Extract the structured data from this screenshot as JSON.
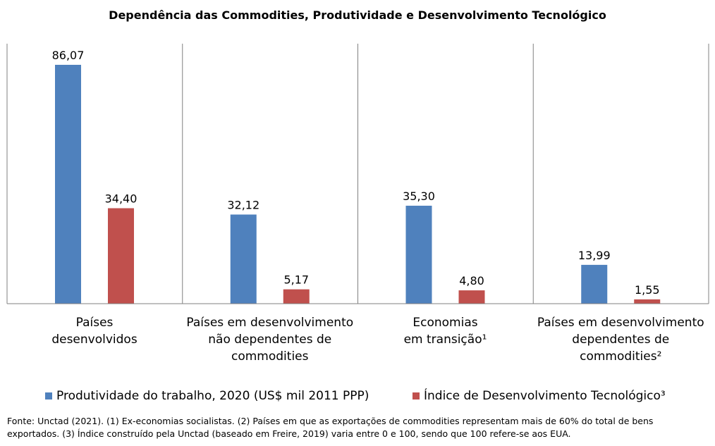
{
  "chart_data": {
    "type": "bar",
    "title": "Dependência das Commodities, Produtividade e Desenvolvimento Tecnológico",
    "categories": [
      [
        "Países",
        "desenvolvidos"
      ],
      [
        "Países em desenvolvimento",
        "não dependentes de",
        "commodities"
      ],
      [
        "Economias",
        "em transição¹"
      ],
      [
        "Países em desenvolvimento",
        "dependentes de",
        "commodities²"
      ]
    ],
    "series": [
      {
        "name": "Produtividade do trabalho, 2020 (US$ mil 2011 PPP)",
        "values": [
          86.07,
          32.12,
          35.3,
          13.99
        ],
        "labels": [
          "86,07",
          "32,12",
          "35,30",
          "13,99"
        ],
        "color": "#4F81BD"
      },
      {
        "name": "Índice de Desenvolvimento Tecnológico³",
        "values": [
          34.4,
          5.17,
          4.8,
          1.55
        ],
        "labels": [
          "34,40",
          "5,17",
          "4,80",
          "1,55"
        ],
        "color": "#C0504D"
      }
    ],
    "ylim": [
      0,
      86.07
    ],
    "grid": false,
    "category_dividers": true,
    "legend_position": "bottom"
  },
  "source_note": [
    "Fonte: Unctad (2021). (1) Ex-economias socialistas. (2) Países em que as exportações de commodities representam mais de 60% do total de bens",
    "exportados. (3) Índice construído pela Unctad (baseado em Freire, 2019) varia entre 0 e 100, sendo que 100 refere-se aos EUA."
  ]
}
